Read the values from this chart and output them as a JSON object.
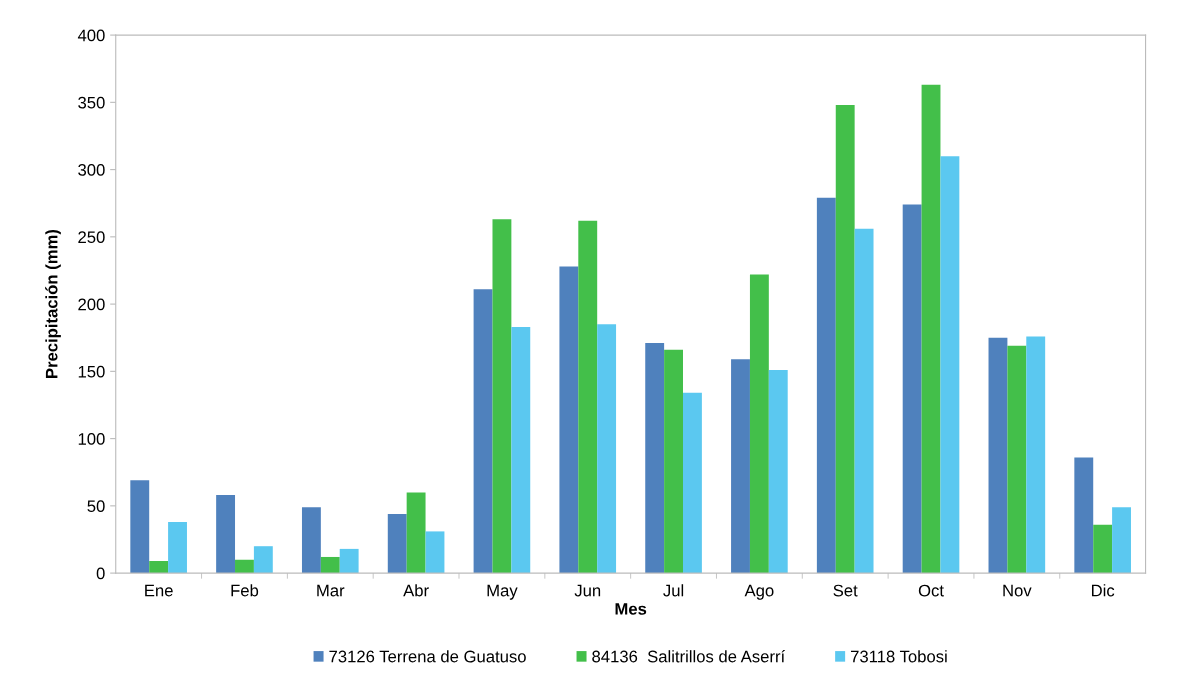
{
  "chart_data": {
    "type": "bar",
    "xlabel": "Mes",
    "ylabel": "Precipitación (mm)",
    "categories": [
      "Ene",
      "Feb",
      "Mar",
      "Abr",
      "May",
      "Jun",
      "Jul",
      "Ago",
      "Set",
      "Oct",
      "Nov",
      "Dic"
    ],
    "series": [
      {
        "name": "73126 Terrena de Guatuso",
        "color": "#4f81bd",
        "values": [
          69,
          58,
          49,
          44,
          211,
          228,
          171,
          159,
          279,
          274,
          175,
          86
        ]
      },
      {
        "name": "84136  Salitrillos de Aserrí",
        "color": "#43bf4a",
        "values": [
          9,
          10,
          12,
          60,
          263,
          262,
          166,
          222,
          348,
          363,
          169,
          36
        ]
      },
      {
        "name": "73118 Tobosi",
        "color": "#5bc8f0",
        "values": [
          38,
          20,
          18,
          31,
          183,
          185,
          134,
          151,
          256,
          310,
          176,
          49
        ]
      }
    ],
    "ylim": [
      0,
      400
    ],
    "yticks": [
      0,
      50,
      100,
      150,
      200,
      250,
      300,
      350,
      400
    ],
    "grid": false,
    "legend": "bottom"
  }
}
